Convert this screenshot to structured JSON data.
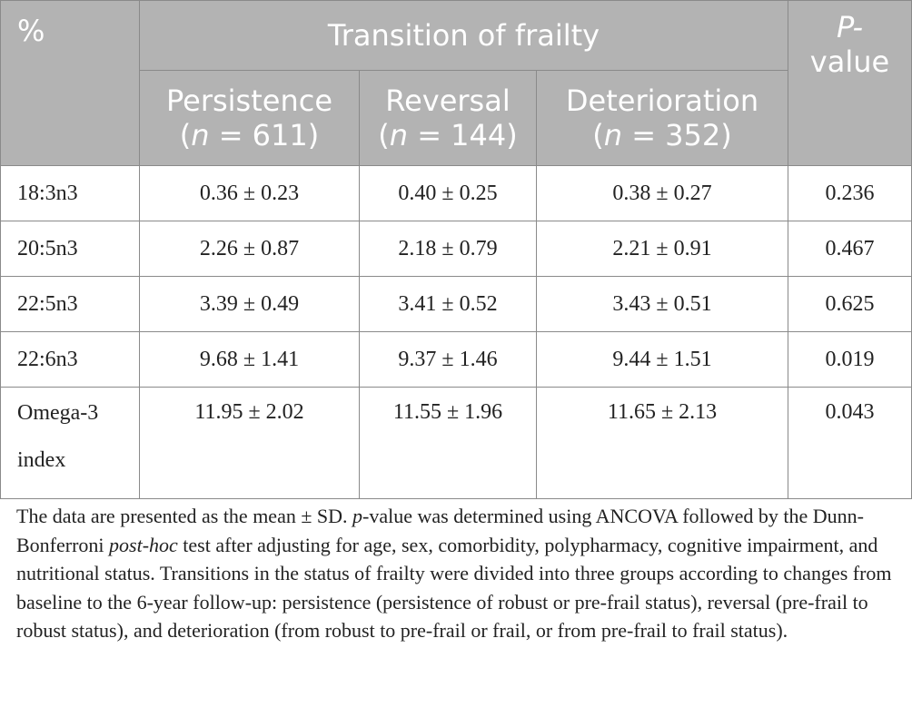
{
  "table": {
    "corner_label": "%",
    "group_header": "Transition of frailty",
    "pvalue_header_line1": "P-",
    "pvalue_header_line2": "value",
    "columns": [
      {
        "name": "Persistence",
        "n_prefix": "(",
        "n_var": "n",
        "n_suffix": " = 611)"
      },
      {
        "name": "Reversal",
        "n_prefix": "(",
        "n_var": "n",
        "n_suffix": " = 144)"
      },
      {
        "name": "Deterioration",
        "n_prefix": "(",
        "n_var": "n",
        "n_suffix": " = 352)"
      }
    ],
    "rows": [
      {
        "label": "18:3n3",
        "persistence": "0.36 ± 0.23",
        "reversal": "0.40 ± 0.25",
        "deterioration": "0.38 ± 0.27",
        "p": "0.236"
      },
      {
        "label": "20:5n3",
        "persistence": "2.26 ± 0.87",
        "reversal": "2.18 ± 0.79",
        "deterioration": "2.21 ± 0.91",
        "p": "0.467"
      },
      {
        "label": "22:5n3",
        "persistence": "3.39 ± 0.49",
        "reversal": "3.41 ± 0.52",
        "deterioration": "3.43 ± 0.51",
        "p": "0.625"
      },
      {
        "label": "22:6n3",
        "persistence": "9.68 ± 1.41",
        "reversal": "9.37 ± 1.46",
        "deterioration": "9.44 ± 1.51",
        "p": "0.019"
      },
      {
        "label_line1": "Omega-3",
        "label_line2": "index",
        "persistence": "11.95 ± 2.02",
        "reversal": "11.55 ± 1.96",
        "deterioration": "11.65 ± 2.13",
        "p": "0.043"
      }
    ]
  },
  "footnote": {
    "part1": "The data are presented as the mean ± SD. ",
    "p_italic": "p",
    "part2": "-value was determined using ANCOVA followed by the Dunn-Bonferroni ",
    "posthoc_italic": "post-hoc",
    "part3": " test after adjusting for age, sex, comorbidity, polypharmacy, cognitive impairment, and nutritional status. Transitions in the status of frailty were divided into three groups according to changes from baseline to the 6-year follow-up: persistence (persistence of robust or pre-frail status), reversal (pre-frail to robust status), and deterioration (from robust to pre-frail or frail, or from pre-frail to frail status)."
  }
}
